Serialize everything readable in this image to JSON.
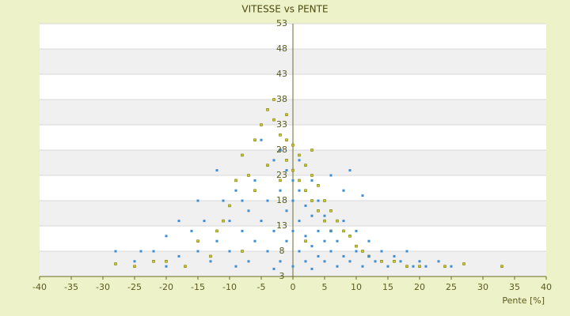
{
  "chart_data": {
    "type": "scatter",
    "title": "VITESSE vs PENTE",
    "x_label": "Pente [%]",
    "xlim": [
      -40,
      40
    ],
    "xticks": [
      -40,
      -35,
      -30,
      -25,
      -20,
      -15,
      -10,
      -5,
      0,
      5,
      10,
      15,
      20,
      25,
      30,
      35,
      40
    ],
    "ylim": [
      3,
      53
    ],
    "yticks": [
      3,
      8,
      13,
      18,
      23,
      28,
      33,
      38,
      43,
      48,
      53
    ],
    "grid": true,
    "series": [
      {
        "color": "#c8c814",
        "x": [
          -28,
          -22,
          -17,
          -13,
          -12,
          -10,
          -9,
          -8,
          -7,
          -6,
          -5,
          -4,
          -3,
          -3,
          -2,
          -2,
          -1,
          -1,
          0,
          0,
          1,
          1,
          2,
          2,
          3,
          3,
          4,
          5,
          5,
          6,
          7,
          8,
          9,
          10,
          11,
          12,
          14,
          16,
          18,
          20,
          24,
          27,
          33,
          -15,
          -11,
          -6,
          -4,
          -2,
          4,
          6,
          -20,
          -25,
          -8,
          2,
          3,
          -1
        ],
        "values": [
          5.5,
          6,
          5,
          7,
          12,
          17,
          22,
          27,
          23,
          30,
          33,
          36,
          38,
          34,
          31,
          28,
          26,
          30,
          29,
          24,
          27,
          22,
          25,
          20,
          23,
          18,
          21,
          18,
          14,
          16,
          14,
          12,
          11,
          9,
          8,
          7,
          6,
          6,
          5,
          5,
          5,
          5.5,
          5,
          10,
          14,
          20,
          25,
          22,
          16,
          12,
          6,
          5,
          8,
          10,
          28,
          35
        ]
      },
      {
        "color": "#3a8fd8",
        "x": [
          -28,
          -25,
          -22,
          -20,
          -18,
          -16,
          -15,
          -14,
          -13,
          -12,
          -11,
          -10,
          -10,
          -9,
          -9,
          -8,
          -7,
          -7,
          -6,
          -6,
          -5,
          -5,
          -4,
          -4,
          -3,
          -3,
          -2,
          -2,
          -2,
          -1,
          -1,
          -1,
          0,
          0,
          0,
          0,
          1,
          1,
          1,
          1,
          2,
          2,
          2,
          3,
          3,
          3,
          4,
          4,
          4,
          5,
          5,
          5,
          6,
          6,
          7,
          7,
          8,
          8,
          9,
          10,
          10,
          11,
          12,
          13,
          14,
          15,
          16,
          17,
          18,
          19,
          20,
          21,
          23,
          25,
          6,
          8,
          9,
          11,
          -18,
          -15,
          -20,
          -24,
          -8,
          -12,
          3,
          -3,
          12
        ],
        "values": [
          8,
          6,
          8,
          5,
          7,
          12,
          8,
          14,
          6,
          10,
          18,
          8,
          14,
          5,
          20,
          12,
          16,
          6,
          10,
          22,
          14,
          30,
          8,
          18,
          26,
          12,
          6,
          20,
          28,
          10,
          16,
          24,
          5,
          12,
          18,
          22,
          8,
          14,
          20,
          26,
          6,
          11,
          17,
          9,
          15,
          22,
          7,
          12,
          18,
          6,
          10,
          15,
          8,
          12,
          5,
          10,
          7,
          14,
          6,
          8,
          12,
          5,
          7,
          6,
          8,
          5,
          7,
          6,
          8,
          5,
          6,
          5,
          6,
          5,
          23,
          20,
          24,
          19,
          14,
          18,
          11,
          8,
          18,
          24,
          4.5,
          4.5,
          10
        ]
      }
    ]
  }
}
